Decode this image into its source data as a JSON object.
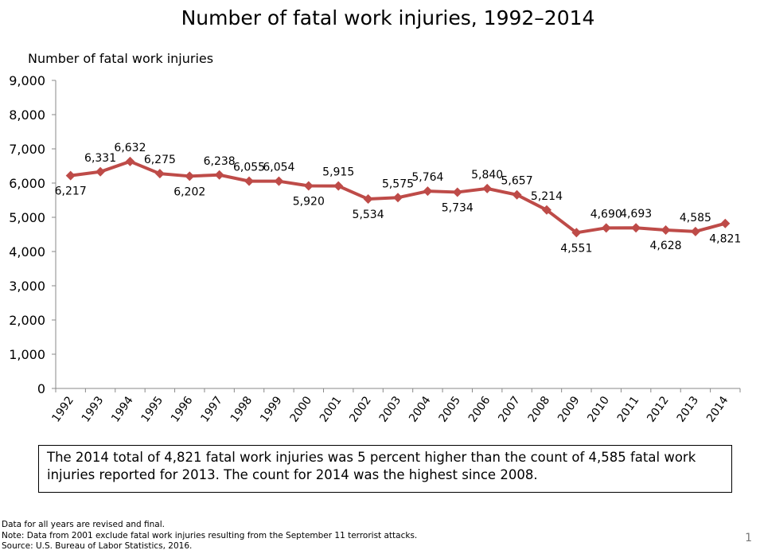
{
  "chart_data": {
    "type": "line",
    "title": "Number of fatal work injuries, 1992–2014",
    "xlabel": "",
    "ylabel": "Number of fatal work injuries",
    "x": [
      "1992",
      "1993",
      "1994",
      "1995",
      "1996",
      "1997",
      "1998",
      "1999",
      "2000",
      "2001",
      "2002",
      "2003",
      "2004",
      "2005",
      "2006",
      "2007",
      "2008",
      "2009",
      "2010",
      "2011",
      "2012",
      "2013",
      "2014"
    ],
    "series": [
      {
        "values": [
          6217,
          6331,
          6632,
          6275,
          6202,
          6238,
          6055,
          6054,
          5920,
          5915,
          5534,
          5575,
          5764,
          5734,
          5840,
          5657,
          5214,
          4551,
          4690,
          4693,
          4628,
          4585,
          4821
        ],
        "labels": [
          "6,217",
          "6,331",
          "6,632",
          "6,275",
          "6,202",
          "6,238",
          "6,055",
          "6,054",
          "5,920",
          "5,915",
          "5,534",
          "5,575",
          "5,764",
          "5,734",
          "5,840",
          "5,657",
          "5,214",
          "4,551",
          "4,690",
          "4,693",
          "4,628",
          "4,585",
          "4,821"
        ],
        "label_position": [
          "below",
          "above",
          "above",
          "above",
          "below",
          "above",
          "above",
          "above",
          "below",
          "above",
          "below",
          "above",
          "above",
          "below",
          "above",
          "above",
          "above",
          "below",
          "above",
          "above",
          "below",
          "above",
          "below"
        ]
      }
    ],
    "yticks": [
      0,
      1000,
      2000,
      3000,
      4000,
      5000,
      6000,
      7000,
      8000,
      9000
    ],
    "ytick_labels": [
      "0",
      "1,000",
      "2,000",
      "3,000",
      "4,000",
      "5,000",
      "6,000",
      "7,000",
      "8,000",
      "9,000"
    ],
    "ylim": [
      0,
      9000
    ],
    "grid": false,
    "legend": "none",
    "line_color": "#BE4B48"
  },
  "callout": "The 2014 total of 4,821 fatal work injuries was 5 percent higher than the count of 4,585 fatal work injuries reported for 2013. The count for 2014 was the highest since 2008.",
  "notes": [
    "Data for all years are revised and final.",
    "Note: Data from 2001 exclude fatal work injuries resulting from the September 11 terrorist attacks.",
    "Source: U.S. Bureau of Labor Statistics, 2016."
  ],
  "page_number": "1"
}
